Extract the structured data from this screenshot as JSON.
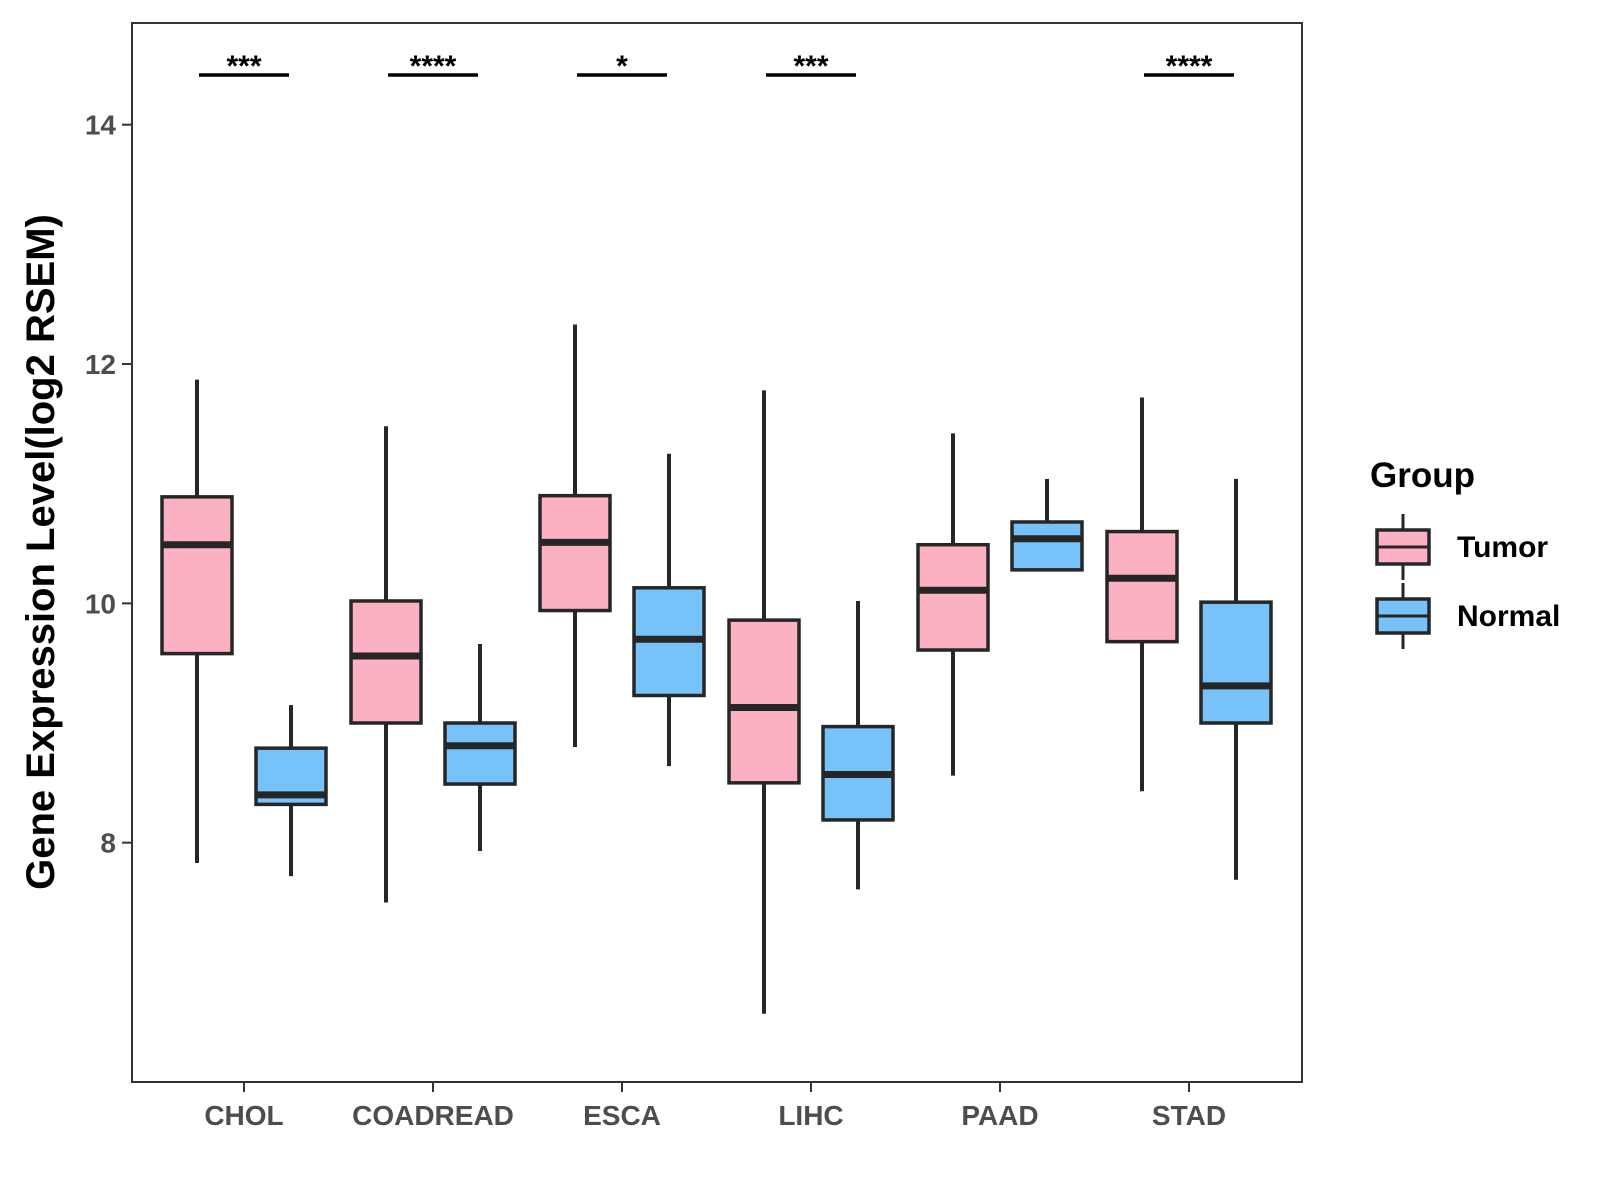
{
  "chart_data": {
    "type": "boxplot",
    "title": "",
    "xlabel": "",
    "ylabel": "Gene Expression Level(log2 RSEM)",
    "ylim": [
      6.0,
      14.85
    ],
    "yticks": [
      8,
      10,
      12,
      14
    ],
    "grid": false,
    "legend": {
      "title": "Group",
      "placement": "right",
      "entries": [
        {
          "name": "Tumor",
          "color": "#fbb1c2"
        },
        {
          "name": "Normal",
          "color": "#77c3f9"
        }
      ]
    },
    "categories": [
      "CHOL",
      "COADREAD",
      "ESCA",
      "LIHC",
      "PAAD",
      "STAD"
    ],
    "series": [
      {
        "name": "Tumor",
        "color": "#fbb1c2",
        "boxes": [
          {
            "whisker_low": 7.83,
            "q1": 9.58,
            "median": 10.49,
            "q3": 10.89,
            "whisker_high": 11.87
          },
          {
            "whisker_low": 7.5,
            "q1": 9.0,
            "median": 9.56,
            "q3": 10.02,
            "whisker_high": 11.48
          },
          {
            "whisker_low": 8.8,
            "q1": 9.94,
            "median": 10.51,
            "q3": 10.9,
            "whisker_high": 12.33
          },
          {
            "whisker_low": 6.57,
            "q1": 8.5,
            "median": 9.13,
            "q3": 9.86,
            "whisker_high": 11.78
          },
          {
            "whisker_low": 8.56,
            "q1": 9.61,
            "median": 10.11,
            "q3": 10.49,
            "whisker_high": 11.42
          },
          {
            "whisker_low": 8.43,
            "q1": 9.68,
            "median": 10.21,
            "q3": 10.6,
            "whisker_high": 11.72
          }
        ]
      },
      {
        "name": "Normal",
        "color": "#77c3f9",
        "boxes": [
          {
            "whisker_low": 7.72,
            "q1": 8.32,
            "median": 8.4,
            "q3": 8.79,
            "whisker_high": 9.15
          },
          {
            "whisker_low": 7.93,
            "q1": 8.49,
            "median": 8.81,
            "q3": 9.0,
            "whisker_high": 9.66
          },
          {
            "whisker_low": 8.64,
            "q1": 9.23,
            "median": 9.7,
            "q3": 10.13,
            "whisker_high": 11.25
          },
          {
            "whisker_low": 7.61,
            "q1": 8.19,
            "median": 8.57,
            "q3": 8.97,
            "whisker_high": 10.02
          },
          {
            "whisker_low": 10.28,
            "q1": 10.28,
            "median": 10.54,
            "q3": 10.68,
            "whisker_high": 11.04
          },
          {
            "whisker_low": 7.69,
            "q1": 9.0,
            "median": 9.31,
            "q3": 10.01,
            "whisker_high": 11.04
          }
        ]
      }
    ],
    "significance": [
      {
        "category": "CHOL",
        "label": "***"
      },
      {
        "category": "COADREAD",
        "label": "****"
      },
      {
        "category": "ESCA",
        "label": "*"
      },
      {
        "category": "LIHC",
        "label": "***"
      },
      {
        "category": "PAAD",
        "label": ""
      },
      {
        "category": "STAD",
        "label": "****"
      }
    ]
  }
}
